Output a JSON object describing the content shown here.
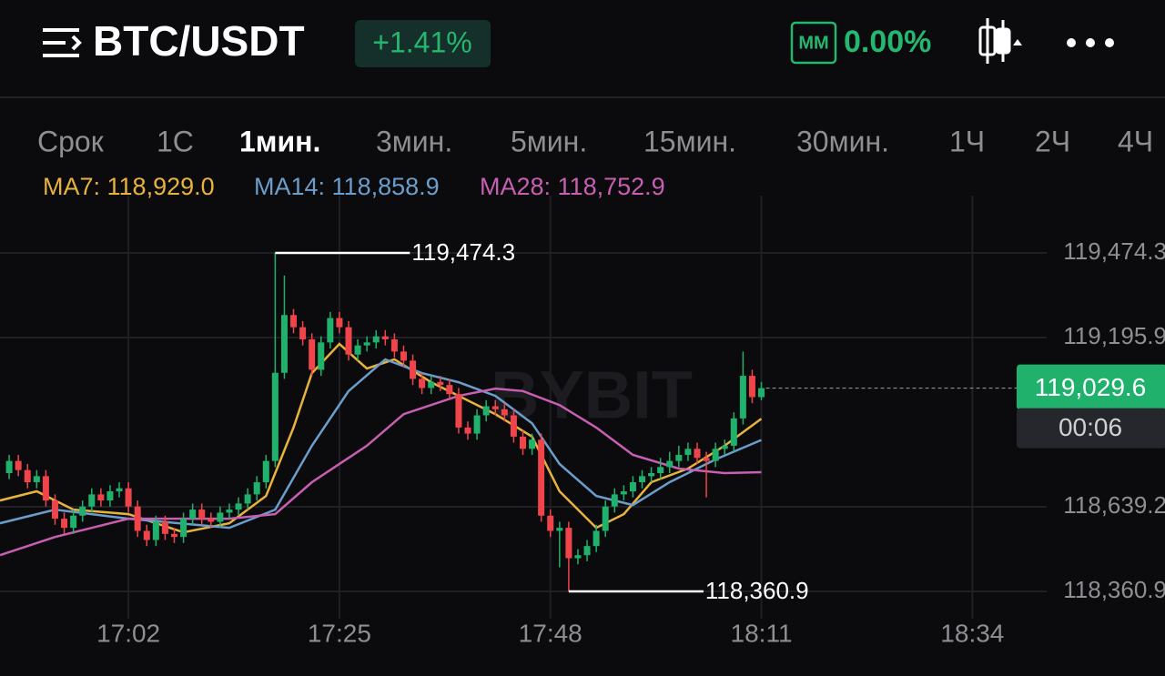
{
  "header": {
    "symbol": "BTC/USDT",
    "change": "+1.41%",
    "badge": "MM",
    "badge_value": "0.00%"
  },
  "timeframes": {
    "items": [
      "Срок",
      "1С",
      "1мин.",
      "3мин.",
      "5мин.",
      "15мин.",
      "30мин.",
      "1Ч",
      "2Ч",
      "4Ч"
    ],
    "active": 2
  },
  "chart_data": {
    "type": "candlestick",
    "watermark": "BYBIT",
    "up_color": "#20b26c",
    "down_color": "#ef454a",
    "grid": true,
    "x": [
      "16:49",
      "16:50",
      "16:51",
      "16:52",
      "16:53",
      "16:54",
      "16:55",
      "16:56",
      "16:57",
      "16:58",
      "16:59",
      "17:00",
      "17:01",
      "17:02",
      "17:03",
      "17:04",
      "17:05",
      "17:06",
      "17:07",
      "17:08",
      "17:09",
      "17:10",
      "17:11",
      "17:12",
      "17:13",
      "17:14",
      "17:15",
      "17:16",
      "17:17",
      "17:18",
      "17:19",
      "17:20",
      "17:21",
      "17:22",
      "17:23",
      "17:24",
      "17:25",
      "17:26",
      "17:27",
      "17:28",
      "17:29",
      "17:30",
      "17:31",
      "17:32",
      "17:33",
      "17:34",
      "17:35",
      "17:36",
      "17:37",
      "17:38",
      "17:39",
      "17:40",
      "17:41",
      "17:42",
      "17:43",
      "17:44",
      "17:45",
      "17:46",
      "17:47",
      "17:48",
      "17:49",
      "17:50",
      "17:51",
      "17:52",
      "17:53",
      "17:54",
      "17:55",
      "17:56",
      "17:57",
      "17:58",
      "17:59",
      "18:00",
      "18:01",
      "18:02",
      "18:03",
      "18:04",
      "18:05",
      "18:06",
      "18:07",
      "18:08",
      "18:09",
      "18:10",
      "18:11"
    ],
    "open": [
      118750,
      118790,
      118760,
      118720,
      118740,
      118660,
      118600,
      118570,
      118610,
      118640,
      118680,
      118660,
      118690,
      118700,
      118640,
      118560,
      118530,
      118590,
      118550,
      118540,
      118600,
      118630,
      118600,
      118590,
      118620,
      118630,
      118650,
      118680,
      118720,
      118790,
      119080,
      119270,
      119230,
      119190,
      119090,
      119180,
      119260,
      119230,
      119140,
      119170,
      119180,
      119200,
      119190,
      119150,
      119120,
      119060,
      119030,
      119050,
      119040,
      119010,
      118900,
      118880,
      118940,
      118970,
      118960,
      118940,
      118870,
      118830,
      118860,
      118610,
      118560,
      118570,
      118470,
      118480,
      118510,
      118560,
      118640,
      118680,
      118690,
      118720,
      118740,
      118750,
      118770,
      118790,
      118810,
      118830,
      118800,
      118790,
      118830,
      118840,
      118930,
      119070,
      119000
    ],
    "high": [
      118810,
      118810,
      118780,
      118760,
      118760,
      118680,
      118620,
      118630,
      118660,
      118700,
      118700,
      118710,
      118720,
      118720,
      118660,
      118580,
      118610,
      118610,
      118570,
      118620,
      118650,
      118650,
      118620,
      118640,
      118650,
      118670,
      118700,
      118740,
      118810,
      119474.3,
      119400,
      119290,
      119250,
      119210,
      119200,
      119280,
      119280,
      119250,
      119190,
      119200,
      119220,
      119220,
      119210,
      119170,
      119140,
      119080,
      119070,
      119070,
      119060,
      119030,
      118920,
      118960,
      118990,
      118990,
      118980,
      118960,
      118890,
      118880,
      118880,
      118630,
      118590,
      118590,
      118500,
      118530,
      118580,
      118660,
      118700,
      118710,
      118740,
      118760,
      118770,
      118800,
      118820,
      118840,
      118850,
      118850,
      118820,
      118850,
      118860,
      118950,
      119150,
      119090,
      119050
    ],
    "low": [
      118730,
      118740,
      118700,
      118700,
      118640,
      118580,
      118550,
      118550,
      118590,
      118620,
      118640,
      118640,
      118670,
      118620,
      118540,
      118510,
      118510,
      118530,
      118520,
      118520,
      118580,
      118580,
      118570,
      118570,
      118600,
      118610,
      118630,
      118660,
      118700,
      118770,
      119060,
      119210,
      119170,
      119070,
      119070,
      119160,
      119210,
      119120,
      119120,
      119150,
      119160,
      119170,
      119130,
      119100,
      119040,
      119010,
      119010,
      119020,
      118990,
      118880,
      118860,
      118860,
      118920,
      118940,
      118920,
      118850,
      118810,
      118810,
      118590,
      118540,
      118440,
      118360.9,
      118450,
      118460,
      118490,
      118540,
      118620,
      118660,
      118670,
      118700,
      118720,
      118730,
      118750,
      118770,
      118790,
      118780,
      118670,
      118770,
      118810,
      118820,
      118910,
      118980,
      118990
    ],
    "close": [
      118790,
      118760,
      118720,
      118740,
      118660,
      118600,
      118570,
      118610,
      118640,
      118680,
      118660,
      118690,
      118700,
      118640,
      118560,
      118530,
      118590,
      118550,
      118540,
      118600,
      118630,
      118600,
      118590,
      118620,
      118630,
      118650,
      118680,
      118720,
      118790,
      119080,
      119270,
      119230,
      119190,
      119090,
      119180,
      119260,
      119230,
      119140,
      119170,
      119180,
      119200,
      119190,
      119150,
      119120,
      119060,
      119030,
      119050,
      119040,
      119010,
      118900,
      118880,
      118940,
      118970,
      118960,
      118940,
      118870,
      118830,
      118860,
      118610,
      118560,
      118570,
      118470,
      118480,
      118510,
      118560,
      118640,
      118680,
      118690,
      118720,
      118740,
      118750,
      118770,
      118790,
      118810,
      118830,
      118800,
      118790,
      118830,
      118840,
      118930,
      119070,
      119000,
      119029.6
    ],
    "ma": [
      {
        "name": "MA7: 118,929.0",
        "color": "#e8b33c",
        "x": [
          "16:48",
          "16:52",
          "16:56",
          "17:02",
          "17:08",
          "17:13",
          "17:17",
          "17:20",
          "17:22",
          "17:25",
          "17:28",
          "17:31",
          "17:35",
          "17:39",
          "17:42",
          "17:46",
          "17:49",
          "17:53",
          "17:56",
          "17:59",
          "18:03",
          "18:07",
          "18:11"
        ],
        "values": [
          118660,
          118690,
          118630,
          118615,
          118555,
          118585,
          118675,
          118900,
          119079,
          119175,
          119094,
          119124,
          119049,
          118989,
          118944,
          118870,
          118690,
          118570,
          118615,
          118720,
          118765,
          118840,
          118929.0
        ]
      },
      {
        "name": "MA14: 118,858.9",
        "color": "#6b9ecb",
        "x": [
          "16:48",
          "16:54",
          "17:02",
          "17:13",
          "17:18",
          "17:22",
          "17:26",
          "17:30",
          "17:34",
          "17:38",
          "17:42",
          "17:46",
          "17:49",
          "17:53",
          "17:57",
          "18:01",
          "18:06",
          "18:11"
        ],
        "values": [
          118585,
          118630,
          118600,
          118570,
          118630,
          118840,
          119020,
          119124,
          119079,
          119049,
          119004,
          118914,
          118780,
          118675,
          118645,
          118720,
          118795,
          118858.9
        ]
      },
      {
        "name": "MA28: 118,752.9",
        "color": "#c85fb2",
        "x": [
          "16:48",
          "16:54",
          "17:02",
          "17:13",
          "17:18",
          "17:22",
          "17:28",
          "17:32",
          "17:38",
          "17:42",
          "17:45",
          "17:49",
          "17:53",
          "17:57",
          "18:02",
          "18:07",
          "18:11"
        ],
        "values": [
          118480,
          118540,
          118600,
          118600,
          118615,
          118720,
          118840,
          118944,
          119004,
          119028,
          119020,
          118974,
          118900,
          118810,
          118765,
          118750,
          118752.9
        ]
      }
    ],
    "xlim": [
      "16:48",
      "18:55"
    ],
    "xticks": [
      "17:02",
      "17:25",
      "17:48",
      "18:11",
      "18:34"
    ],
    "ylim": [
      118271.1,
      119662.9
    ],
    "yticks": [
      {
        "value": 119474.3,
        "label": "119,474.3"
      },
      {
        "value": 119195.9,
        "label": "119,195.9"
      },
      {
        "value": 118639.2,
        "label": "118,639.2"
      },
      {
        "value": 118360.9,
        "label": "118,360.9"
      }
    ],
    "high_marker": {
      "x": "17:18",
      "value": 119474.3,
      "label": "119,474.3"
    },
    "low_marker": {
      "x": "17:50",
      "value": 118360.9,
      "label": "118,360.9"
    },
    "last_price": {
      "value": 119029.6,
      "label": "119,029.6"
    },
    "countdown": "00:06"
  }
}
